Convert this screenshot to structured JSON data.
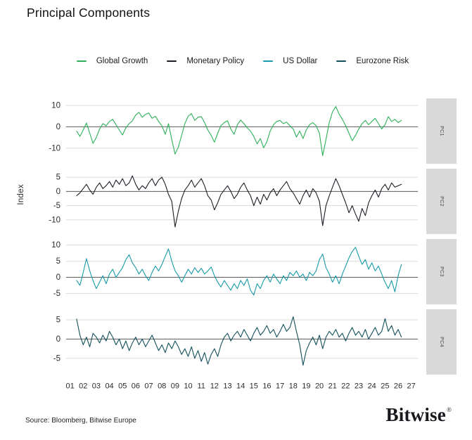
{
  "title": "Principal Components",
  "y_axis_label": "Index",
  "footer": {
    "source": "Source: Bloomberg, Bitwise Europe",
    "brand": "Bitwise",
    "brand_mark": "®"
  },
  "style_colors": {
    "grid": "#dcdcdc",
    "zero_line": "#595959",
    "strip_bg": "#d9d9d9",
    "tick_text": "#2b2b2b"
  },
  "chart_data": {
    "type": "line",
    "title": "Principal Components",
    "ylabel": "Index",
    "grid": "horizontal",
    "legend_position": "top",
    "facet_strip_side": "right",
    "x_start": 2001.5,
    "x_step": 0.25,
    "xlim": [
      2000.7,
      2027.5
    ],
    "x_ticks": [
      "01",
      "02",
      "03",
      "04",
      "05",
      "06",
      "07",
      "08",
      "09",
      "10",
      "11",
      "12",
      "13",
      "14",
      "15",
      "16",
      "17",
      "18",
      "19",
      "20",
      "21",
      "22",
      "23",
      "24",
      "25",
      "26",
      "27"
    ],
    "panels": [
      {
        "id": "PC1",
        "name": "Global Growth",
        "color": "#2db05a",
        "yticks": [
          10,
          0,
          -10
        ],
        "ylim": [
          -16,
          12
        ],
        "values": [
          -2.0,
          -4.5,
          -1.5,
          1.8,
          -3.0,
          -7.8,
          -5.0,
          -1.0,
          1.5,
          0.5,
          2.5,
          3.5,
          1.0,
          -1.5,
          -3.8,
          -0.5,
          1.5,
          2.8,
          5.5,
          6.8,
          4.5,
          5.8,
          6.5,
          4.0,
          5.0,
          2.5,
          0.5,
          -3.5,
          1.5,
          -6.0,
          -12.8,
          -9.5,
          -4.0,
          1.5,
          5.0,
          6.2,
          3.0,
          4.5,
          4.8,
          2.0,
          -1.5,
          -4.0,
          -7.2,
          -3.0,
          0.5,
          2.0,
          2.8,
          -1.0,
          -3.5,
          1.0,
          3.2,
          1.5,
          -0.5,
          -2.0,
          -4.5,
          -8.0,
          -5.5,
          -9.8,
          -7.0,
          -2.0,
          1.0,
          2.5,
          3.0,
          1.5,
          2.2,
          0.5,
          -1.0,
          -4.8,
          -2.0,
          -5.5,
          -1.5,
          1.0,
          2.0,
          0.5,
          -3.0,
          -13.5,
          -6.0,
          2.0,
          7.0,
          9.5,
          6.0,
          3.5,
          0.5,
          -3.0,
          -6.5,
          -4.0,
          -1.0,
          1.5,
          3.0,
          1.0,
          2.5,
          4.0,
          1.5,
          -1.0,
          1.0,
          4.8,
          2.5,
          3.5,
          2.0,
          3.0
        ]
      },
      {
        "id": "PC2",
        "name": "Monetary Policy",
        "color": "#1d1d27",
        "yticks": [
          5,
          0,
          -5,
          -10
        ],
        "ylim": [
          -14,
          7
        ],
        "values": [
          -1.5,
          -0.5,
          1.0,
          2.5,
          0.5,
          -1.0,
          1.5,
          3.0,
          1.0,
          2.0,
          3.5,
          1.5,
          4.0,
          2.5,
          4.5,
          2.0,
          3.0,
          5.5,
          2.5,
          0.5,
          2.0,
          1.0,
          3.0,
          4.5,
          2.0,
          4.0,
          5.0,
          2.5,
          -1.0,
          -3.5,
          -12.5,
          -7.0,
          -2.5,
          0.5,
          2.0,
          4.0,
          1.5,
          3.0,
          4.5,
          2.0,
          -1.5,
          -3.0,
          -6.5,
          -4.0,
          -1.0,
          0.5,
          2.0,
          0.0,
          -2.5,
          -1.0,
          1.5,
          3.0,
          0.5,
          -1.5,
          -5.0,
          -2.0,
          -4.5,
          -1.0,
          -3.0,
          -0.5,
          1.0,
          -1.5,
          0.5,
          2.0,
          3.5,
          1.0,
          -0.5,
          -2.5,
          -4.5,
          -1.5,
          0.5,
          -2.0,
          1.0,
          -0.5,
          -3.5,
          -12.0,
          -5.0,
          -1.5,
          1.5,
          4.5,
          2.0,
          -1.0,
          -4.0,
          -7.5,
          -5.0,
          -8.0,
          -10.5,
          -6.0,
          -8.5,
          -4.0,
          -1.5,
          0.5,
          -2.0,
          1.0,
          2.5,
          0.5,
          3.0,
          1.5,
          2.0,
          2.5
        ]
      },
      {
        "id": "PC3",
        "name": "US Dollar",
        "color": "#189aa8",
        "yticks": [
          10,
          5,
          0,
          -5
        ],
        "ylim": [
          -7.5,
          11
        ],
        "values": [
          -1.0,
          -2.5,
          1.5,
          5.8,
          2.0,
          -1.0,
          -3.5,
          -1.5,
          0.5,
          -2.0,
          1.0,
          2.5,
          0.0,
          1.5,
          3.0,
          5.5,
          7.0,
          4.5,
          3.0,
          1.0,
          2.5,
          0.5,
          -1.0,
          1.5,
          3.5,
          2.0,
          4.0,
          6.5,
          8.8,
          5.0,
          2.0,
          0.5,
          -1.5,
          0.5,
          2.5,
          1.0,
          3.0,
          1.5,
          2.8,
          1.0,
          2.0,
          3.2,
          0.5,
          -1.5,
          -3.0,
          -1.0,
          -2.5,
          -4.0,
          -2.0,
          -3.5,
          -1.0,
          -2.5,
          -0.5,
          -4.0,
          -5.5,
          -2.0,
          -3.5,
          -1.0,
          0.5,
          -1.5,
          1.0,
          -0.5,
          -2.0,
          0.5,
          -1.0,
          1.5,
          0.5,
          2.0,
          0.0,
          1.0,
          -1.0,
          1.5,
          0.5,
          2.0,
          5.5,
          7.2,
          3.0,
          1.0,
          -1.5,
          0.5,
          -2.0,
          1.0,
          3.5,
          6.0,
          8.0,
          9.3,
          6.5,
          4.0,
          5.5,
          2.5,
          4.5,
          2.0,
          3.5,
          1.0,
          -1.5,
          -3.5,
          -1.0,
          -4.5,
          0.5,
          4.0
        ]
      },
      {
        "id": "PC4",
        "name": "Eurozone Risk",
        "color": "#14505c",
        "yticks": [
          5,
          0,
          -5
        ],
        "ylim": [
          -8.5,
          7
        ],
        "values": [
          5.2,
          1.0,
          -1.5,
          0.5,
          -2.0,
          1.5,
          0.5,
          -1.0,
          1.0,
          -0.5,
          2.0,
          0.5,
          -1.5,
          0.0,
          -2.5,
          -0.5,
          -3.0,
          -1.0,
          0.5,
          -1.5,
          0.0,
          -2.0,
          -0.5,
          1.0,
          -1.0,
          -3.0,
          -1.5,
          -3.5,
          -1.0,
          -2.5,
          -0.5,
          -2.0,
          -4.0,
          -2.5,
          -4.5,
          -2.0,
          -5.0,
          -3.0,
          -5.8,
          -3.5,
          -6.5,
          -4.0,
          -2.5,
          -4.5,
          -1.5,
          0.5,
          1.5,
          -0.5,
          1.0,
          2.0,
          0.5,
          2.5,
          1.0,
          -0.5,
          1.5,
          3.0,
          1.0,
          2.0,
          3.5,
          1.5,
          2.5,
          0.5,
          2.0,
          3.8,
          2.0,
          3.0,
          5.8,
          2.0,
          -1.5,
          -6.8,
          -3.0,
          -1.0,
          0.5,
          -1.5,
          1.0,
          -2.5,
          0.5,
          2.0,
          1.0,
          2.5,
          0.5,
          1.5,
          -0.5,
          1.5,
          3.0,
          1.0,
          2.0,
          0.5,
          2.5,
          0.0,
          1.5,
          3.0,
          1.0,
          2.0,
          5.3,
          2.0,
          3.5,
          1.0,
          2.5,
          0.5
        ]
      }
    ]
  }
}
